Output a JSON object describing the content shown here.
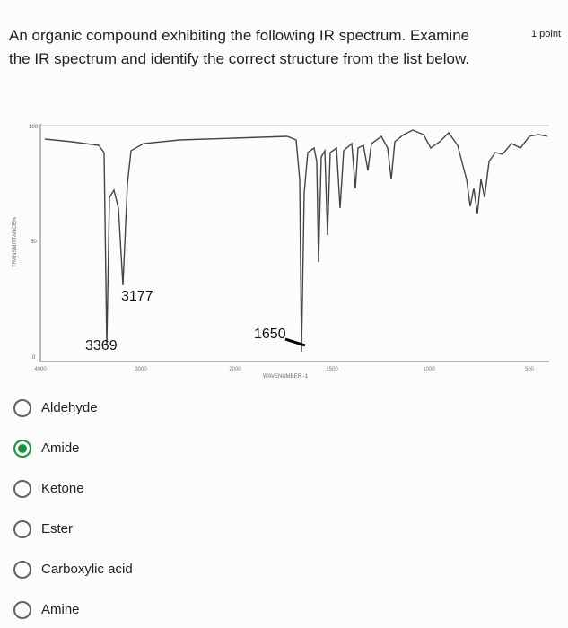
{
  "question": {
    "text_line1": "An organic compound exhibiting the following IR spectrum. Examine",
    "text_line2": "the IR spectrum and identify the correct structure from the list below.",
    "points": "1 point"
  },
  "spectrum": {
    "y_label": "TRANSMITTANCE%",
    "x_label": "WAVENUMBER -1",
    "yticks": [
      "100",
      "50",
      "0"
    ],
    "xticks": [
      "4000",
      "3000",
      "2000",
      "1500",
      "1000",
      "500"
    ],
    "annotations": [
      "3177",
      "3369",
      "1650"
    ]
  },
  "options": [
    {
      "label": "Aldehyde",
      "selected": false
    },
    {
      "label": "Amide",
      "selected": true
    },
    {
      "label": "Ketone",
      "selected": false
    },
    {
      "label": "Ester",
      "selected": false
    },
    {
      "label": "Carboxylic acid",
      "selected": false
    },
    {
      "label": "Amine",
      "selected": false
    }
  ]
}
